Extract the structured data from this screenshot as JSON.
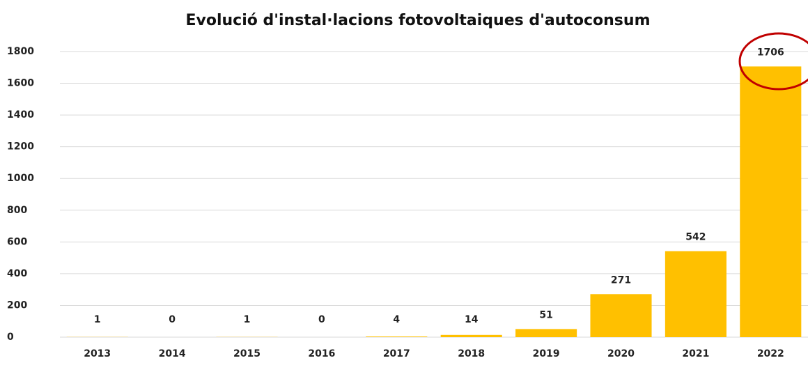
{
  "chart_data": {
    "type": "bar",
    "title": "Evolució d'instal·lacions fotovoltaiques d'autoconsum",
    "categories": [
      "2013",
      "2014",
      "2015",
      "2016",
      "2017",
      "2018",
      "2019",
      "2020",
      "2021",
      "2022"
    ],
    "values": [
      1,
      0,
      1,
      0,
      4,
      14,
      51,
      271,
      542,
      1706
    ],
    "color": "#ffc000",
    "ylim": [
      0,
      1800
    ],
    "yticks": [
      0,
      200,
      400,
      600,
      800,
      1000,
      1200,
      1400,
      1600,
      1800
    ],
    "grid": true
  }
}
